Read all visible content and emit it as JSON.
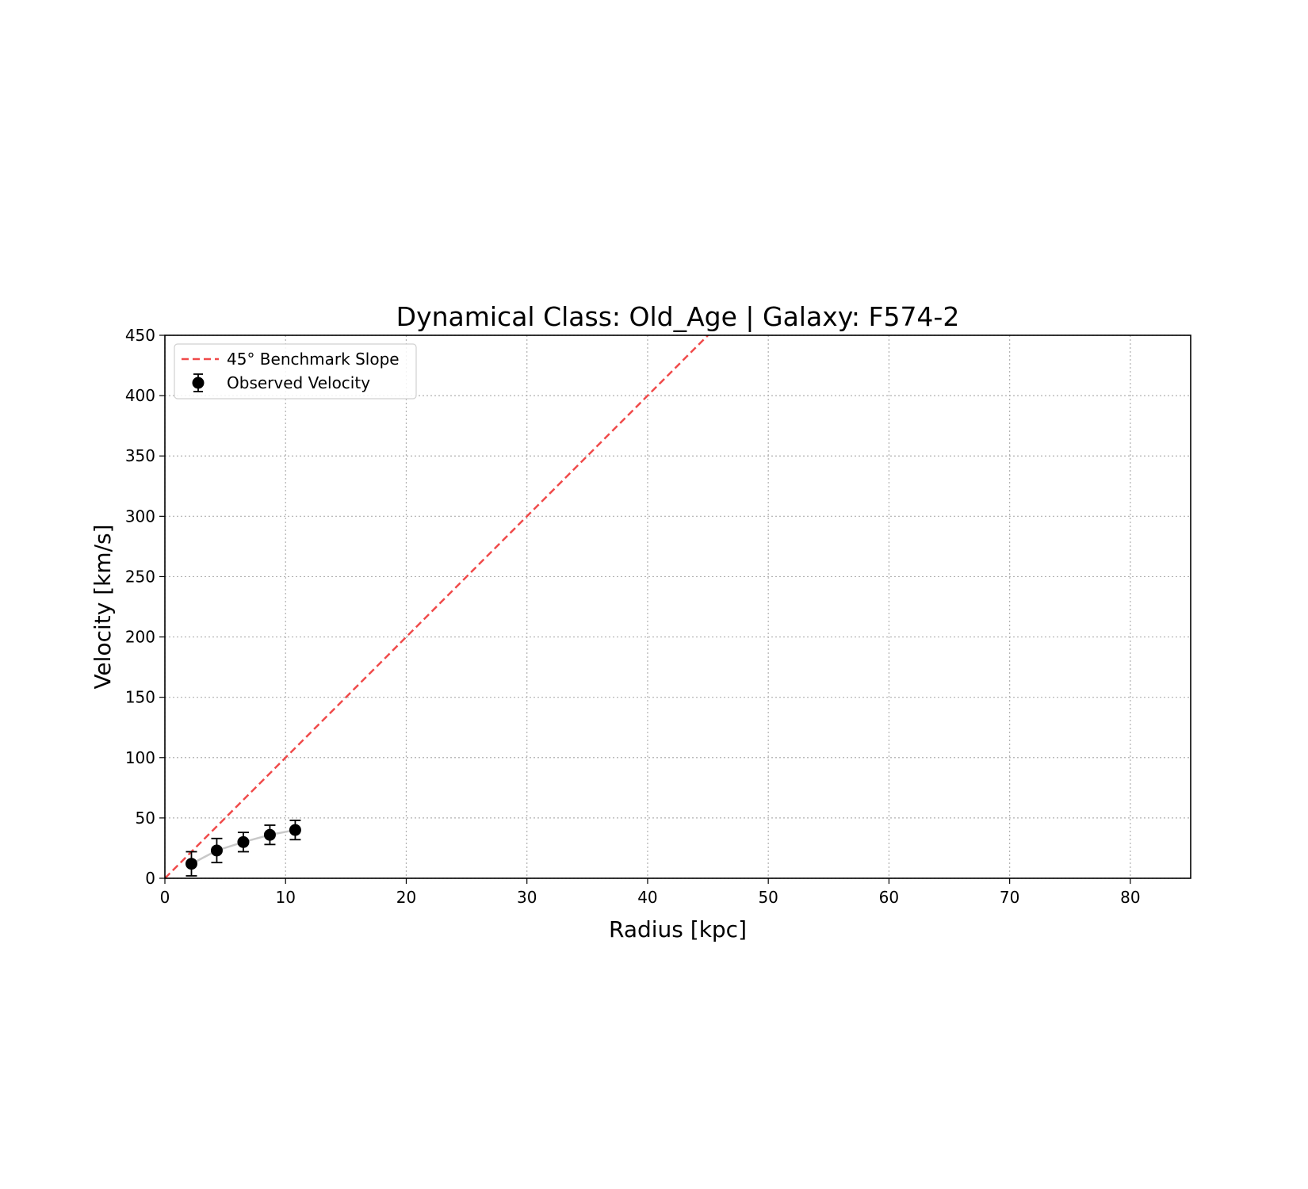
{
  "chart_data": {
    "type": "scatter",
    "title": "Dynamical Class: Old_Age | Galaxy: F574-2",
    "xlabel": "Radius [kpc]",
    "ylabel": "Velocity [km/s]",
    "xlim": [
      0,
      85
    ],
    "ylim": [
      0,
      450
    ],
    "xticks": [
      0,
      10,
      20,
      30,
      40,
      50,
      60,
      70,
      80
    ],
    "yticks": [
      0,
      50,
      100,
      150,
      200,
      250,
      300,
      350,
      400,
      450
    ],
    "grid": true,
    "legend_position": "upper-left",
    "series": [
      {
        "name": "45° Benchmark Slope",
        "kind": "line",
        "style": "dashed",
        "color": "#f04a4a",
        "x": [
          0,
          45
        ],
        "y": [
          0,
          450
        ]
      },
      {
        "name": "Observed Velocity",
        "kind": "errorbar",
        "color": "#000000",
        "connector_color": "#c8c8c8",
        "x": [
          2.2,
          4.3,
          6.5,
          8.7,
          10.8
        ],
        "y": [
          12,
          23,
          30,
          36,
          40
        ],
        "yerr": [
          10,
          10,
          8,
          8,
          8
        ]
      }
    ]
  }
}
